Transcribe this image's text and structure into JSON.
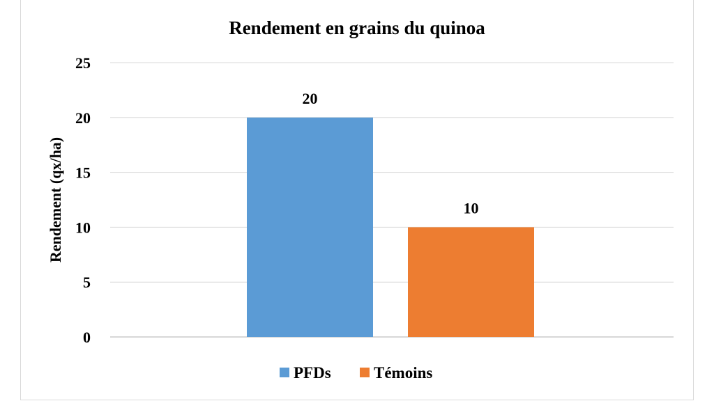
{
  "chart_data": {
    "type": "bar",
    "title": "Rendement en grains du quinoa",
    "xlabel": "",
    "ylabel": "Rendement (qx/ha)",
    "ylim": [
      0,
      25
    ],
    "yticks": [
      0,
      5,
      10,
      15,
      20,
      25
    ],
    "grid": true,
    "legend_position": "bottom",
    "series": [
      {
        "name": "PFDs",
        "values": [
          20
        ],
        "color": "#5b9bd5"
      },
      {
        "name": "Témoins",
        "values": [
          10
        ],
        "color": "#ed7d31"
      }
    ],
    "data_labels": [
      "20",
      "10"
    ]
  }
}
